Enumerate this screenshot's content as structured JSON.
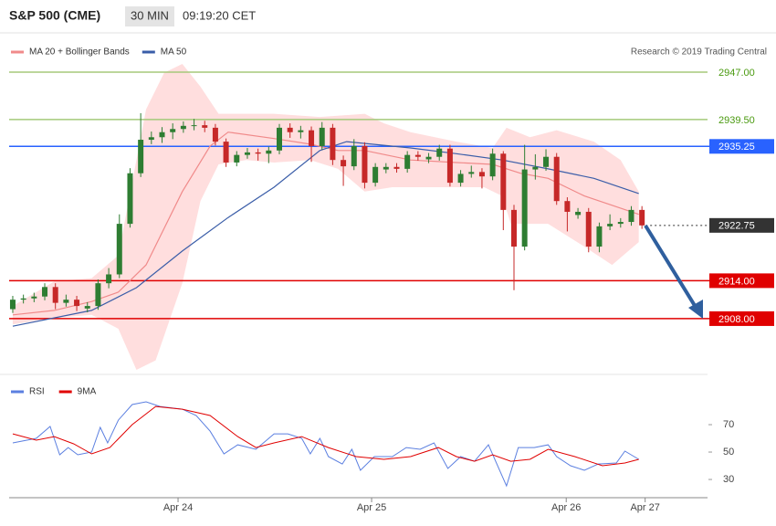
{
  "header": {
    "symbol": "S&P 500 (CME)",
    "interval": "30 MIN",
    "time": "09:19:20 CET",
    "credit": "Research © 2019 Trading Central"
  },
  "chart_data": [
    {
      "type": "candlestick",
      "up_color": "#2e7d32",
      "down_color": "#c62828",
      "xlim": [
        -0.34,
        65.15
      ],
      "ylim": [
        2899.9,
        2952.63
      ],
      "xticks": [
        {
          "value": 15.5,
          "label": "Apr 24"
        },
        {
          "value": 33.65,
          "label": "Apr 25"
        },
        {
          "value": 51.9,
          "label": "Apr 26"
        },
        {
          "value": 59.3,
          "label": "Apr 27"
        }
      ],
      "open": [
        2909.5,
        2911.0,
        2911.2,
        2911.5,
        2913.0,
        2910.5,
        2911.0,
        2909.6,
        2910.0,
        2913.6,
        2915.0,
        2923.0,
        2931.0,
        2936.3,
        2936.7,
        2937.5,
        2938.0,
        2938.5,
        2938.6,
        2938.2,
        2936.0,
        2932.7,
        2933.9,
        2934.3,
        2934.1,
        2934.6,
        2938.2,
        2937.5,
        2937.8,
        2935.3,
        2938.2,
        2933.1,
        2932.1,
        2935.3,
        2929.5,
        2931.6,
        2932.0,
        2931.7,
        2933.9,
        2933.2,
        2933.6,
        2934.9,
        2929.5,
        2930.9,
        2931.2,
        2930.5,
        2934.1,
        2925.2,
        2919.4,
        2931.6,
        2932.0,
        2933.6,
        2926.6,
        2924.4,
        2924.9,
        2919.4,
        2922.6,
        2923.0,
        2923.3,
        2925.2
      ],
      "high": [
        2911.6,
        2911.8,
        2912.1,
        2913.6,
        2913.6,
        2911.8,
        2911.6,
        2910.6,
        2914.2,
        2916.0,
        2924.5,
        2931.8,
        2940.5,
        2937.6,
        2938.3,
        2938.9,
        2939.2,
        2939.6,
        2939.3,
        2938.8,
        2936.5,
        2934.5,
        2935.0,
        2934.9,
        2935.2,
        2938.8,
        2938.9,
        2938.5,
        2938.4,
        2939.1,
        2938.8,
        2933.8,
        2936.4,
        2935.9,
        2932.6,
        2932.6,
        2932.6,
        2934.5,
        2934.5,
        2934.2,
        2935.5,
        2935.5,
        2931.5,
        2932.2,
        2931.8,
        2934.9,
        2934.5,
        2926.0,
        2935.5,
        2934.0,
        2934.8,
        2934.2,
        2927.2,
        2925.5,
        2925.5,
        2923.2,
        2924.5,
        2923.9,
        2925.8,
        2925.8
      ],
      "low": [
        2908.9,
        2910.4,
        2910.6,
        2910.9,
        2909.5,
        2909.9,
        2909.2,
        2909.0,
        2909.4,
        2912.8,
        2914.4,
        2922.4,
        2930.4,
        2935.6,
        2935.8,
        2936.4,
        2937.4,
        2937.8,
        2937.5,
        2935.4,
        2932.0,
        2932.1,
        2933.3,
        2933.0,
        2932.6,
        2934.0,
        2936.6,
        2936.5,
        2932.8,
        2934.7,
        2932.3,
        2929.0,
        2931.5,
        2928.6,
        2928.9,
        2931.0,
        2931.1,
        2931.1,
        2933.0,
        2932.6,
        2933.0,
        2928.9,
        2928.9,
        2930.3,
        2928.6,
        2929.9,
        2922.0,
        2912.5,
        2918.8,
        2930.0,
        2931.4,
        2926.0,
        2921.8,
        2923.8,
        2918.5,
        2918.5,
        2922.0,
        2922.4,
        2922.7,
        2922.2
      ],
      "close": [
        2911.0,
        2911.2,
        2911.5,
        2913.0,
        2910.5,
        2911.0,
        2910.0,
        2910.0,
        2913.6,
        2915.0,
        2923.0,
        2931.0,
        2936.3,
        2936.7,
        2937.5,
        2938.0,
        2938.5,
        2938.6,
        2938.2,
        2936.0,
        2932.7,
        2933.9,
        2934.3,
        2934.1,
        2934.6,
        2938.2,
        2937.5,
        2937.8,
        2935.3,
        2938.2,
        2933.1,
        2932.1,
        2935.3,
        2929.5,
        2932.0,
        2932.0,
        2931.7,
        2933.9,
        2933.6,
        2933.6,
        2934.9,
        2929.5,
        2930.9,
        2931.2,
        2930.5,
        2934.1,
        2925.2,
        2919.4,
        2931.6,
        2932.0,
        2933.6,
        2926.6,
        2924.9,
        2924.9,
        2919.4,
        2922.6,
        2923.0,
        2923.3,
        2925.2,
        2922.75
      ],
      "series": [
        {
          "name": "MA 20 + Bollinger Bands",
          "color": "#f08a8a",
          "x": [
            0,
            3.9,
            7.4,
            9.9,
            12.5,
            15.9,
            18.5,
            20.2,
            24.5,
            27.9,
            30.5,
            33.0,
            37.3,
            41.6,
            45.0,
            47.6,
            50.2,
            53.6,
            58.7
          ],
          "values": [
            2908.6,
            2909.3,
            2910.7,
            2912.2,
            2916.5,
            2928.1,
            2935.3,
            2937.5,
            2936.5,
            2935.6,
            2934.6,
            2934.6,
            2933.1,
            2932.7,
            2932.4,
            2931.0,
            2930.2,
            2927.4,
            2924.5
          ]
        },
        {
          "name": "MA 50",
          "color": "#3a5da8",
          "x": [
            0,
            7.4,
            11.6,
            15.9,
            20.2,
            24.5,
            28.8,
            31.3,
            37.3,
            41.6,
            45.9,
            50.2,
            54.5,
            58.7
          ],
          "values": [
            2906.8,
            2909.3,
            2912.9,
            2918.7,
            2924.0,
            2928.8,
            2934.6,
            2936.0,
            2935.0,
            2934.1,
            2933.1,
            2931.7,
            2930.2,
            2927.8
          ]
        }
      ],
      "bollinger": {
        "color": "#ffdede",
        "upper": {
          "x": [
            0,
            3.9,
            7.4,
            9.9,
            12.5,
            14.2,
            15.9,
            17.6,
            19.3,
            24.5,
            28.8,
            33.0,
            34.8,
            37.3,
            41.6,
            45.0,
            46.3,
            48.5,
            51.0,
            54.5,
            57.0,
            58.7
          ],
          "values": [
            2910.0,
            2913.9,
            2914.4,
            2918.0,
            2941.1,
            2946.9,
            2948.3,
            2944.7,
            2940.4,
            2940.4,
            2939.9,
            2940.4,
            2938.9,
            2937.5,
            2936.0,
            2935.0,
            2938.2,
            2936.7,
            2937.8,
            2936.0,
            2933.1,
            2928.1
          ]
        },
        "lower": {
          "x": [
            0,
            3.9,
            7.4,
            9.9,
            11.6,
            13.4,
            15.9,
            17.6,
            19.3,
            21.9,
            24.5,
            27.9,
            30.5,
            33.0,
            35.6,
            39.9,
            44.2,
            45.9,
            46.7,
            50.2,
            53.6,
            56.2,
            58.7
          ],
          "values": [
            2907.1,
            2908.1,
            2908.6,
            2906.4,
            2899.9,
            2901.4,
            2913.6,
            2926.6,
            2932.4,
            2933.1,
            2932.7,
            2933.1,
            2931.7,
            2928.1,
            2928.8,
            2928.8,
            2928.8,
            2927.4,
            2923.0,
            2923.0,
            2919.4,
            2916.5,
            2920.1
          ]
        }
      },
      "levels": [
        {
          "value": 2947,
          "label": "2947.00",
          "color": "#a5c97a",
          "text_color": "#4a9a10",
          "style": "solid",
          "label_style": "text"
        },
        {
          "value": 2939.5,
          "label": "2939.50",
          "color": "#a5c97a",
          "text_color": "#4a9a10",
          "style": "solid",
          "label_style": "text"
        },
        {
          "value": 2935.25,
          "label": "2935.25",
          "color": "#2962ff",
          "text_color": "#ffffff",
          "style": "solid",
          "label_style": "box"
        },
        {
          "value": 2922.75,
          "label": "2922.75",
          "color": "#333333",
          "text_color": "#ffffff",
          "style": "dotted",
          "label_style": "box"
        },
        {
          "value": 2914,
          "label": "2914.00",
          "color": "#e00000",
          "text_color": "#ffffff",
          "style": "solid",
          "label_style": "box"
        },
        {
          "value": 2908,
          "label": "2908.00",
          "color": "#e00000",
          "text_color": "#ffffff",
          "style": "solid",
          "label_style": "box"
        }
      ]
    },
    {
      "type": "line",
      "xlim": [
        -0.34,
        65.15
      ],
      "ylim": [
        16.7,
        100
      ],
      "yticks": [
        30,
        50,
        70
      ],
      "series": [
        {
          "name": "RSI",
          "color": "#5b7fe0",
          "x": [
            0,
            2.2,
            3.5,
            4.4,
            5.2,
            6.1,
            7.4,
            8.2,
            8.9,
            9.9,
            11.2,
            12.5,
            13.8,
            15.9,
            17.2,
            18.5,
            19.8,
            21.1,
            22.8,
            24.5,
            25.8,
            27.1,
            27.9,
            28.8,
            29.6,
            30.9,
            31.8,
            32.6,
            33.9,
            35.6,
            36.9,
            38.2,
            39.5,
            40.8,
            42.0,
            43.3,
            44.6,
            46.3,
            47.4,
            48.9,
            50.2,
            51.0,
            52.3,
            53.6,
            54.9,
            56.6,
            57.4,
            58.7
          ],
          "values": [
            56.7,
            60,
            68.7,
            48,
            53.3,
            48,
            50,
            68,
            56.7,
            73.3,
            84.7,
            86.7,
            83.3,
            81.3,
            76.7,
            65.3,
            48.7,
            55.3,
            52,
            63.3,
            63.3,
            60,
            48.7,
            60,
            46.7,
            41.3,
            52,
            36.7,
            46.7,
            46.7,
            53.3,
            52,
            56.7,
            38,
            46.7,
            43.3,
            55.3,
            25.3,
            53.3,
            53.3,
            55.3,
            46.7,
            40,
            36.7,
            41.3,
            42,
            50.7,
            44.7
          ]
        },
        {
          "name": "9MA",
          "color": "#e00000",
          "x": [
            0,
            2.2,
            3.9,
            5.7,
            7.4,
            9.1,
            11.2,
            13.4,
            15.9,
            18.5,
            21.1,
            22.8,
            24.5,
            27.1,
            29.6,
            32.2,
            34.8,
            37.3,
            39.9,
            41.6,
            43.3,
            45.0,
            46.7,
            48.5,
            50.2,
            52.7,
            55.3,
            57.4,
            58.7
          ],
          "values": [
            63.3,
            58.7,
            61.3,
            56,
            48.7,
            53.3,
            70,
            83.3,
            81.3,
            76.7,
            61.3,
            53.3,
            56.7,
            61.3,
            53.3,
            46.7,
            44.7,
            46.7,
            53.3,
            46.7,
            43.3,
            48,
            43.3,
            44.7,
            52,
            46.7,
            40,
            42,
            44.7
          ]
        }
      ]
    }
  ]
}
